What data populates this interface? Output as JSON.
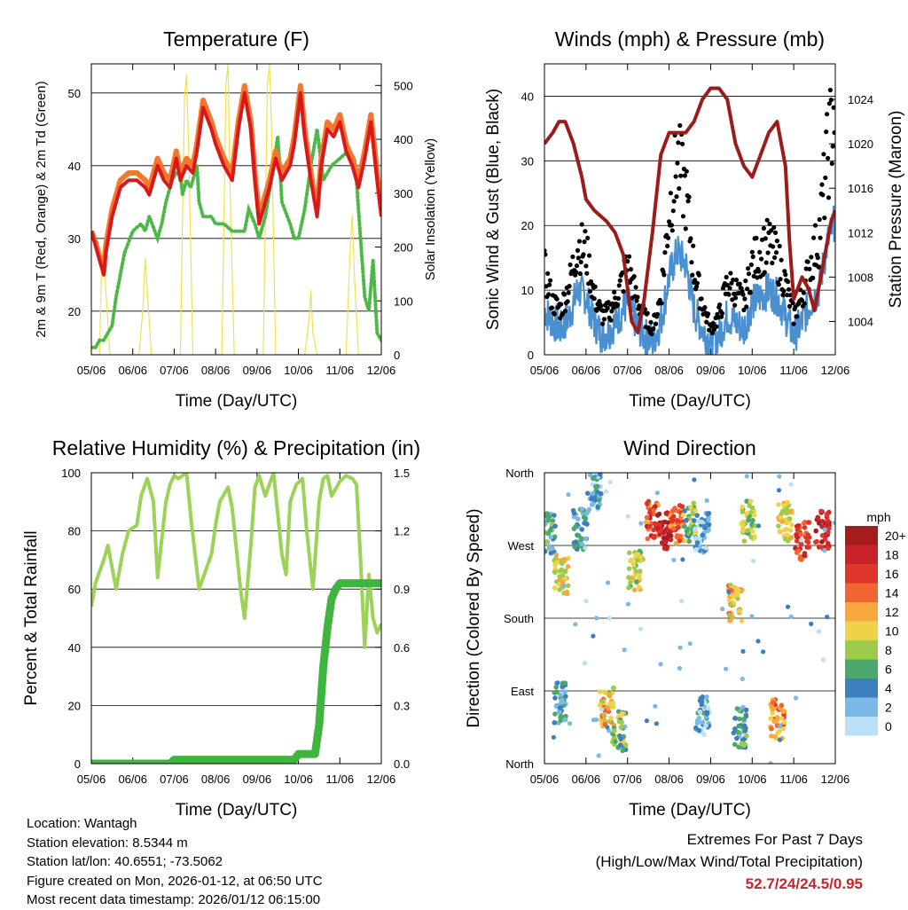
{
  "chart_data": [
    {
      "type": "line",
      "title": "Temperature (F)",
      "xlabel": "Time (Day/UTC)",
      "ylabel": "2m & 9m T (Red, Orange) & 2m Td (Green)",
      "y2label": "Solar Insolation (Yellow)",
      "x_ticks": [
        "05/06",
        "06/06",
        "07/06",
        "08/06",
        "09/06",
        "10/06",
        "11/06",
        "12/06"
      ],
      "xlim": [
        0,
        7
      ],
      "ylim": [
        14,
        54
      ],
      "y_ticks": [
        20,
        30,
        40,
        50
      ],
      "y2lim": [
        0,
        540
      ],
      "y2_ticks": [
        0,
        100,
        200,
        300,
        400,
        500
      ],
      "colors": {
        "t2m": "#d7191c",
        "t9m": "#f4772e",
        "td": "#4db848",
        "solar": "#f2e14c"
      },
      "series": [
        {
          "name": "2m T",
          "x": [
            0,
            0.1,
            0.2,
            0.3,
            0.35,
            0.5,
            0.7,
            0.9,
            1.1,
            1.3,
            1.4,
            1.6,
            1.75,
            1.9,
            2.05,
            2.15,
            2.3,
            2.45,
            2.55,
            2.7,
            2.9,
            3.0,
            3.2,
            3.4,
            3.55,
            3.7,
            3.85,
            3.95,
            4.05,
            4.3,
            4.45,
            4.6,
            4.8,
            4.9,
            5.05,
            5.15,
            5.3,
            5.45,
            5.55,
            5.7,
            5.85,
            6.0,
            6.15,
            6.3,
            6.45,
            6.6,
            6.75,
            6.9,
            7.0
          ],
          "values": [
            31,
            29,
            27,
            25,
            28,
            33,
            37,
            38,
            38,
            37,
            36,
            40,
            38,
            37,
            41,
            38,
            40,
            39,
            42,
            48,
            45,
            43,
            40,
            38,
            45,
            50,
            45,
            38,
            32,
            37,
            41,
            38,
            40,
            43,
            50,
            44,
            38,
            33,
            40,
            45,
            44,
            46,
            42,
            40,
            37,
            41,
            46,
            38,
            33
          ]
        },
        {
          "name": "9m T",
          "x": [
            0,
            0.1,
            0.2,
            0.3,
            0.35,
            0.5,
            0.7,
            0.9,
            1.1,
            1.3,
            1.4,
            1.6,
            1.75,
            1.9,
            2.05,
            2.15,
            2.3,
            2.45,
            2.55,
            2.7,
            2.9,
            3.0,
            3.2,
            3.4,
            3.55,
            3.7,
            3.85,
            3.95,
            4.05,
            4.3,
            4.45,
            4.6,
            4.8,
            4.9,
            5.05,
            5.15,
            5.3,
            5.45,
            5.55,
            5.7,
            5.85,
            6.0,
            6.15,
            6.3,
            6.45,
            6.6,
            6.75,
            6.9,
            7.0
          ],
          "values": [
            31,
            29.5,
            27.5,
            25.5,
            29,
            34,
            38,
            39,
            39,
            38,
            37,
            41,
            39,
            38,
            42,
            39,
            41,
            40,
            43,
            49,
            46,
            44,
            41,
            39,
            46,
            51,
            46,
            39,
            33,
            38,
            42,
            39,
            41,
            44,
            51,
            45,
            39,
            34,
            41,
            46,
            45,
            47,
            43,
            41,
            38,
            42,
            47,
            39,
            34
          ]
        },
        {
          "name": "2m Td",
          "x": [
            0,
            0.1,
            0.2,
            0.3,
            0.4,
            0.5,
            0.6,
            0.8,
            1.0,
            1.2,
            1.3,
            1.4,
            1.6,
            1.7,
            1.8,
            1.95,
            2.05,
            2.15,
            2.2,
            2.3,
            2.4,
            2.55,
            2.6,
            2.7,
            2.9,
            3.0,
            3.2,
            3.4,
            3.55,
            3.7,
            3.8,
            3.95,
            4.05,
            4.2,
            4.4,
            4.5,
            4.55,
            4.6,
            4.8,
            4.9,
            5.0,
            5.15,
            5.3,
            5.45,
            5.6,
            5.8,
            6.0,
            6.2,
            6.35,
            6.4,
            6.5,
            6.6,
            6.7,
            6.8,
            6.9,
            7.0
          ],
          "values": [
            15,
            15,
            16,
            16,
            17,
            18,
            22,
            28,
            31,
            32,
            31,
            33,
            30,
            32,
            35,
            38,
            39,
            39,
            36,
            38,
            37,
            40,
            35,
            33,
            33,
            32,
            32,
            31,
            31,
            31,
            34,
            32,
            30,
            33,
            40,
            44,
            40,
            35,
            32,
            30,
            30,
            34,
            40,
            45,
            38,
            40,
            41,
            42,
            41,
            38,
            30,
            22,
            20,
            27,
            17,
            16
          ]
        },
        {
          "name": "Solar",
          "axis": "y2",
          "x": [
            0,
            0.2,
            0.25,
            0.3,
            0.35,
            0.45,
            1.15,
            1.25,
            1.3,
            1.35,
            1.45,
            2.15,
            2.25,
            2.3,
            2.35,
            2.45,
            3.15,
            3.25,
            3.3,
            3.35,
            3.45,
            4.15,
            4.25,
            4.3,
            4.35,
            4.45,
            5.15,
            5.25,
            5.3,
            5.35,
            5.45,
            6.15,
            6.25,
            6.3,
            6.35,
            6.45,
            7.0
          ],
          "values": [
            0,
            0,
            180,
            200,
            120,
            0,
            0,
            90,
            180,
            120,
            0,
            0,
            480,
            520,
            380,
            0,
            0,
            500,
            540,
            300,
            0,
            0,
            500,
            540,
            420,
            0,
            0,
            60,
            120,
            40,
            0,
            0,
            200,
            260,
            150,
            0,
            0
          ]
        }
      ]
    },
    {
      "type": "line",
      "title": "Winds (mph) & Pressure (mb)",
      "xlabel": "Time (Day/UTC)",
      "ylabel": "Sonic Wind & Gust (Blue, Black)",
      "y2label": "Station Pressure (Maroon)",
      "x_ticks": [
        "05/06",
        "06/06",
        "07/06",
        "08/06",
        "09/06",
        "10/06",
        "11/06",
        "12/06"
      ],
      "xlim": [
        0,
        7
      ],
      "ylim": [
        0,
        45
      ],
      "y_ticks": [
        0,
        10,
        20,
        30,
        40
      ],
      "y2lim": [
        1001.0,
        1027.2
      ],
      "y2_ticks": [
        1004,
        1008,
        1012,
        1016,
        1020,
        1024
      ],
      "colors": {
        "wind": "#4a90d0",
        "gust": "#000000",
        "pressure": "#9b1c1c"
      },
      "series": [
        {
          "name": "Wind",
          "x": [
            0,
            0.2,
            0.4,
            0.6,
            0.8,
            1.0,
            1.2,
            1.4,
            1.6,
            1.8,
            2.0,
            2.2,
            2.4,
            2.6,
            2.8,
            3.0,
            3.2,
            3.4,
            3.6,
            3.8,
            4.0,
            4.2,
            4.4,
            4.6,
            4.8,
            5.0,
            5.2,
            5.4,
            5.6,
            5.8,
            6.0,
            6.2,
            6.4,
            6.6,
            6.8,
            7.0
          ],
          "values": [
            7,
            5,
            4,
            6,
            10,
            9,
            5,
            3,
            4,
            6,
            8,
            5,
            3,
            2,
            5,
            12,
            16,
            14,
            7,
            4,
            2,
            3,
            6,
            5,
            4,
            8,
            9,
            10,
            9,
            6,
            3,
            5,
            8,
            10,
            17,
            21
          ]
        },
        {
          "name": "Gust",
          "x": [
            0,
            0.2,
            0.4,
            0.6,
            0.8,
            1.0,
            1.2,
            1.4,
            1.6,
            1.8,
            2.0,
            2.2,
            2.4,
            2.6,
            2.8,
            3.0,
            3.2,
            3.4,
            3.6,
            3.8,
            4.0,
            4.2,
            4.4,
            4.6,
            4.8,
            5.0,
            5.2,
            5.4,
            5.6,
            5.8,
            6.0,
            6.2,
            6.4,
            6.6,
            6.8,
            7.0
          ],
          "values": [
            13,
            8,
            7,
            11,
            17,
            16,
            9,
            6,
            7,
            10,
            14,
            9,
            6,
            4,
            9,
            22,
            30,
            25,
            13,
            8,
            4,
            6,
            11,
            10,
            8,
            14,
            16,
            17,
            15,
            11,
            6,
            9,
            14,
            18,
            30,
            40
          ]
        },
        {
          "name": "Pressure",
          "axis": "y2",
          "x": [
            0,
            0.2,
            0.35,
            0.5,
            0.7,
            0.9,
            1.0,
            1.2,
            1.5,
            1.7,
            1.9,
            2.0,
            2.1,
            2.25,
            2.4,
            2.6,
            2.8,
            3.0,
            3.2,
            3.4,
            3.6,
            3.8,
            4.0,
            4.2,
            4.4,
            4.6,
            4.8,
            5.0,
            5.2,
            5.4,
            5.6,
            5.8,
            5.9,
            6.0,
            6.2,
            6.35,
            6.5,
            6.65,
            6.8,
            6.9,
            7.0
          ],
          "values": [
            1020,
            1021,
            1022,
            1022,
            1020,
            1017,
            1015,
            1014,
            1013,
            1012,
            1010,
            1007,
            1004,
            1003,
            1006,
            1012,
            1019,
            1021,
            1021,
            1021,
            1022,
            1024,
            1025,
            1025,
            1024,
            1020,
            1018,
            1017,
            1019,
            1021,
            1022,
            1018,
            1011,
            1006,
            1008,
            1007,
            1005,
            1008,
            1011,
            1013,
            1014
          ]
        }
      ]
    },
    {
      "type": "line",
      "title": "Relative Humidity (%) & Precipitation (in)",
      "xlabel": "Time (Day/UTC)",
      "ylabel": "Percent & Total Rainfall",
      "x_ticks": [
        "05/06",
        "06/06",
        "07/06",
        "08/06",
        "09/06",
        "10/06",
        "11/06",
        "12/06"
      ],
      "xlim": [
        0,
        7
      ],
      "ylim": [
        0,
        100
      ],
      "y_ticks": [
        0,
        20,
        40,
        60,
        80,
        100
      ],
      "y2lim": [
        0,
        1.5
      ],
      "y2_ticks": [
        "0.0",
        "0.3",
        "0.6",
        "0.9",
        "1.2",
        "1.5"
      ],
      "colors": {
        "rh": "#9bd257",
        "precip": "#3fb43f"
      },
      "series": [
        {
          "name": "RH",
          "x": [
            0,
            0.1,
            0.3,
            0.4,
            0.6,
            0.75,
            0.9,
            1.1,
            1.2,
            1.35,
            1.5,
            1.6,
            1.8,
            1.9,
            2.0,
            2.1,
            2.3,
            2.4,
            2.6,
            2.8,
            2.9,
            3.0,
            3.1,
            3.3,
            3.4,
            3.6,
            3.7,
            3.85,
            3.95,
            4.05,
            4.2,
            4.4,
            4.6,
            4.7,
            4.8,
            4.95,
            5.1,
            5.2,
            5.35,
            5.5,
            5.6,
            5.7,
            5.8,
            6.0,
            6.15,
            6.3,
            6.4,
            6.5,
            6.6,
            6.7,
            6.8,
            6.9,
            7.0
          ],
          "values": [
            54,
            62,
            70,
            75,
            60,
            72,
            80,
            82,
            92,
            98,
            90,
            64,
            90,
            96,
            99,
            98,
            100,
            85,
            60,
            68,
            72,
            82,
            90,
            95,
            88,
            60,
            50,
            75,
            95,
            99,
            92,
            100,
            72,
            65,
            90,
            96,
            98,
            80,
            60,
            90,
            98,
            99,
            92,
            97,
            99,
            98,
            96,
            70,
            40,
            65,
            50,
            45,
            48
          ]
        },
        {
          "name": "Precip",
          "axis": "y2",
          "x": [
            0,
            1.9,
            2.0,
            4.9,
            5.0,
            5.4,
            5.5,
            5.6,
            5.7,
            5.8,
            5.9,
            6.0,
            6.1,
            7.0
          ],
          "values": [
            0,
            0,
            0.02,
            0.02,
            0.05,
            0.05,
            0.2,
            0.5,
            0.7,
            0.85,
            0.9,
            0.93,
            0.93,
            0.93
          ]
        }
      ]
    },
    {
      "type": "scatter",
      "title": "Wind Direction",
      "xlabel": "Time (Day/UTC)",
      "ylabel": "Direction (Colored By Speed)",
      "x_ticks": [
        "05/06",
        "06/06",
        "07/06",
        "08/06",
        "09/06",
        "10/06",
        "11/06",
        "12/06"
      ],
      "xlim": [
        0,
        7
      ],
      "ylim": [
        0,
        360
      ],
      "y_ticks": [
        "North",
        "East",
        "South",
        "West",
        "North"
      ],
      "legend": {
        "unit": "mph",
        "labels": [
          "20+",
          "18",
          "16",
          "14",
          "12",
          "10",
          "8",
          "6",
          "4",
          "2",
          "0"
        ],
        "colors": [
          "#a51c1c",
          "#c8222a",
          "#e0352b",
          "#f06531",
          "#f7a83c",
          "#f0d24a",
          "#9ccc4a",
          "#4aa86a",
          "#3c7fbf",
          "#7ab8e6",
          "#b9e0f7"
        ]
      },
      "clusters": [
        {
          "x": 0.1,
          "dir": 285,
          "speed": 5
        },
        {
          "x": 0.4,
          "dir": 235,
          "speed": 10
        },
        {
          "x": 0.85,
          "dir": 290,
          "speed": 4
        },
        {
          "x": 1.2,
          "dir": 335,
          "speed": 3
        },
        {
          "x": 2.2,
          "dir": 240,
          "speed": 9
        },
        {
          "x": 2.6,
          "dir": 300,
          "speed": 15
        },
        {
          "x": 2.9,
          "dir": 290,
          "speed": 18
        },
        {
          "x": 3.2,
          "dir": 295,
          "speed": 14
        },
        {
          "x": 3.5,
          "dir": 300,
          "speed": 7
        },
        {
          "x": 3.8,
          "dir": 285,
          "speed": 2
        },
        {
          "x": 4.6,
          "dir": 200,
          "speed": 11
        },
        {
          "x": 4.9,
          "dir": 300,
          "speed": 8
        },
        {
          "x": 5.8,
          "dir": 300,
          "speed": 10
        },
        {
          "x": 6.2,
          "dir": 275,
          "speed": 16
        },
        {
          "x": 6.7,
          "dir": 290,
          "speed": 18
        },
        {
          "x": 0.4,
          "dir": 75,
          "speed": 4
        },
        {
          "x": 1.5,
          "dir": 70,
          "speed": 11
        },
        {
          "x": 1.8,
          "dir": 40,
          "speed": 7
        },
        {
          "x": 3.8,
          "dir": 60,
          "speed": 3
        },
        {
          "x": 4.7,
          "dir": 45,
          "speed": 5
        },
        {
          "x": 5.6,
          "dir": 55,
          "speed": 13
        }
      ]
    }
  ],
  "info": {
    "location": "Location: Wantagh",
    "elevation": "Station elevation: 8.5344 m",
    "latlon": "Station lat/lon: 40.6551; -73.5062",
    "created": "Figure created on Mon, 2026-01-12, at 06:50 UTC",
    "timestamp": "Most recent data timestamp: 2026/01/12 06:15:00"
  },
  "extremes": {
    "title": "Extremes For Past 7 Days",
    "subtitle": "(High/Low/Max Wind/Total Precipitation)",
    "values": "52.7/24/24.5/0.95"
  }
}
